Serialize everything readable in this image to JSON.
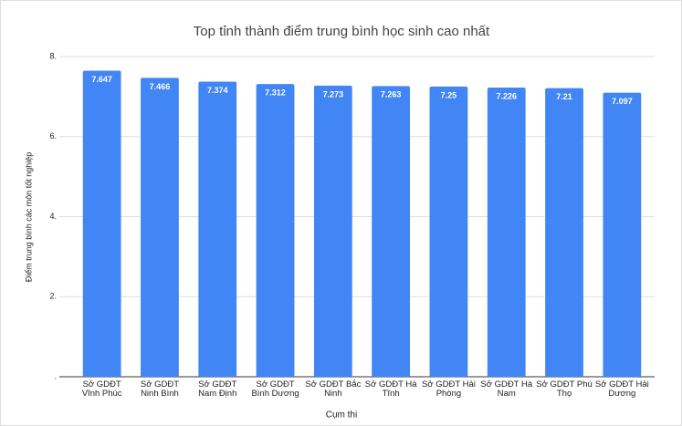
{
  "chart_data": {
    "type": "bar",
    "title": "Top tỉnh thành điểm trung bình học sinh cao nhất",
    "x_label": "Cụm thi",
    "y_label": "Điểm trung bình các môn tốt nghiệp",
    "categories": [
      "Sở GDĐT Vĩnh Phúc",
      "Sở GDĐT Ninh Bình",
      "Sở GDĐT Nam Định",
      "Sở GDĐT Bình Dương",
      "Sở GDĐT Bắc Ninh",
      "Sở GDĐT Hà Tĩnh",
      "Sở GDĐT Hải Phòng",
      "Sở GDĐT Hà Nam",
      "Sở GDĐT Phú Thọ",
      "Sở GDĐT Hải Dương"
    ],
    "values": [
      7.647,
      7.466,
      7.374,
      7.312,
      7.273,
      7.263,
      7.25,
      7.226,
      7.21,
      7.097
    ],
    "color": "#4285f4",
    "ylim": [
      0,
      8
    ],
    "yticks": [
      {
        "value": 0,
        "label": "."
      },
      {
        "value": 2,
        "label": "2."
      },
      {
        "value": 4,
        "label": "4."
      },
      {
        "value": 6,
        "label": "6."
      },
      {
        "value": 8,
        "label": "8."
      }
    ],
    "grid": true
  }
}
